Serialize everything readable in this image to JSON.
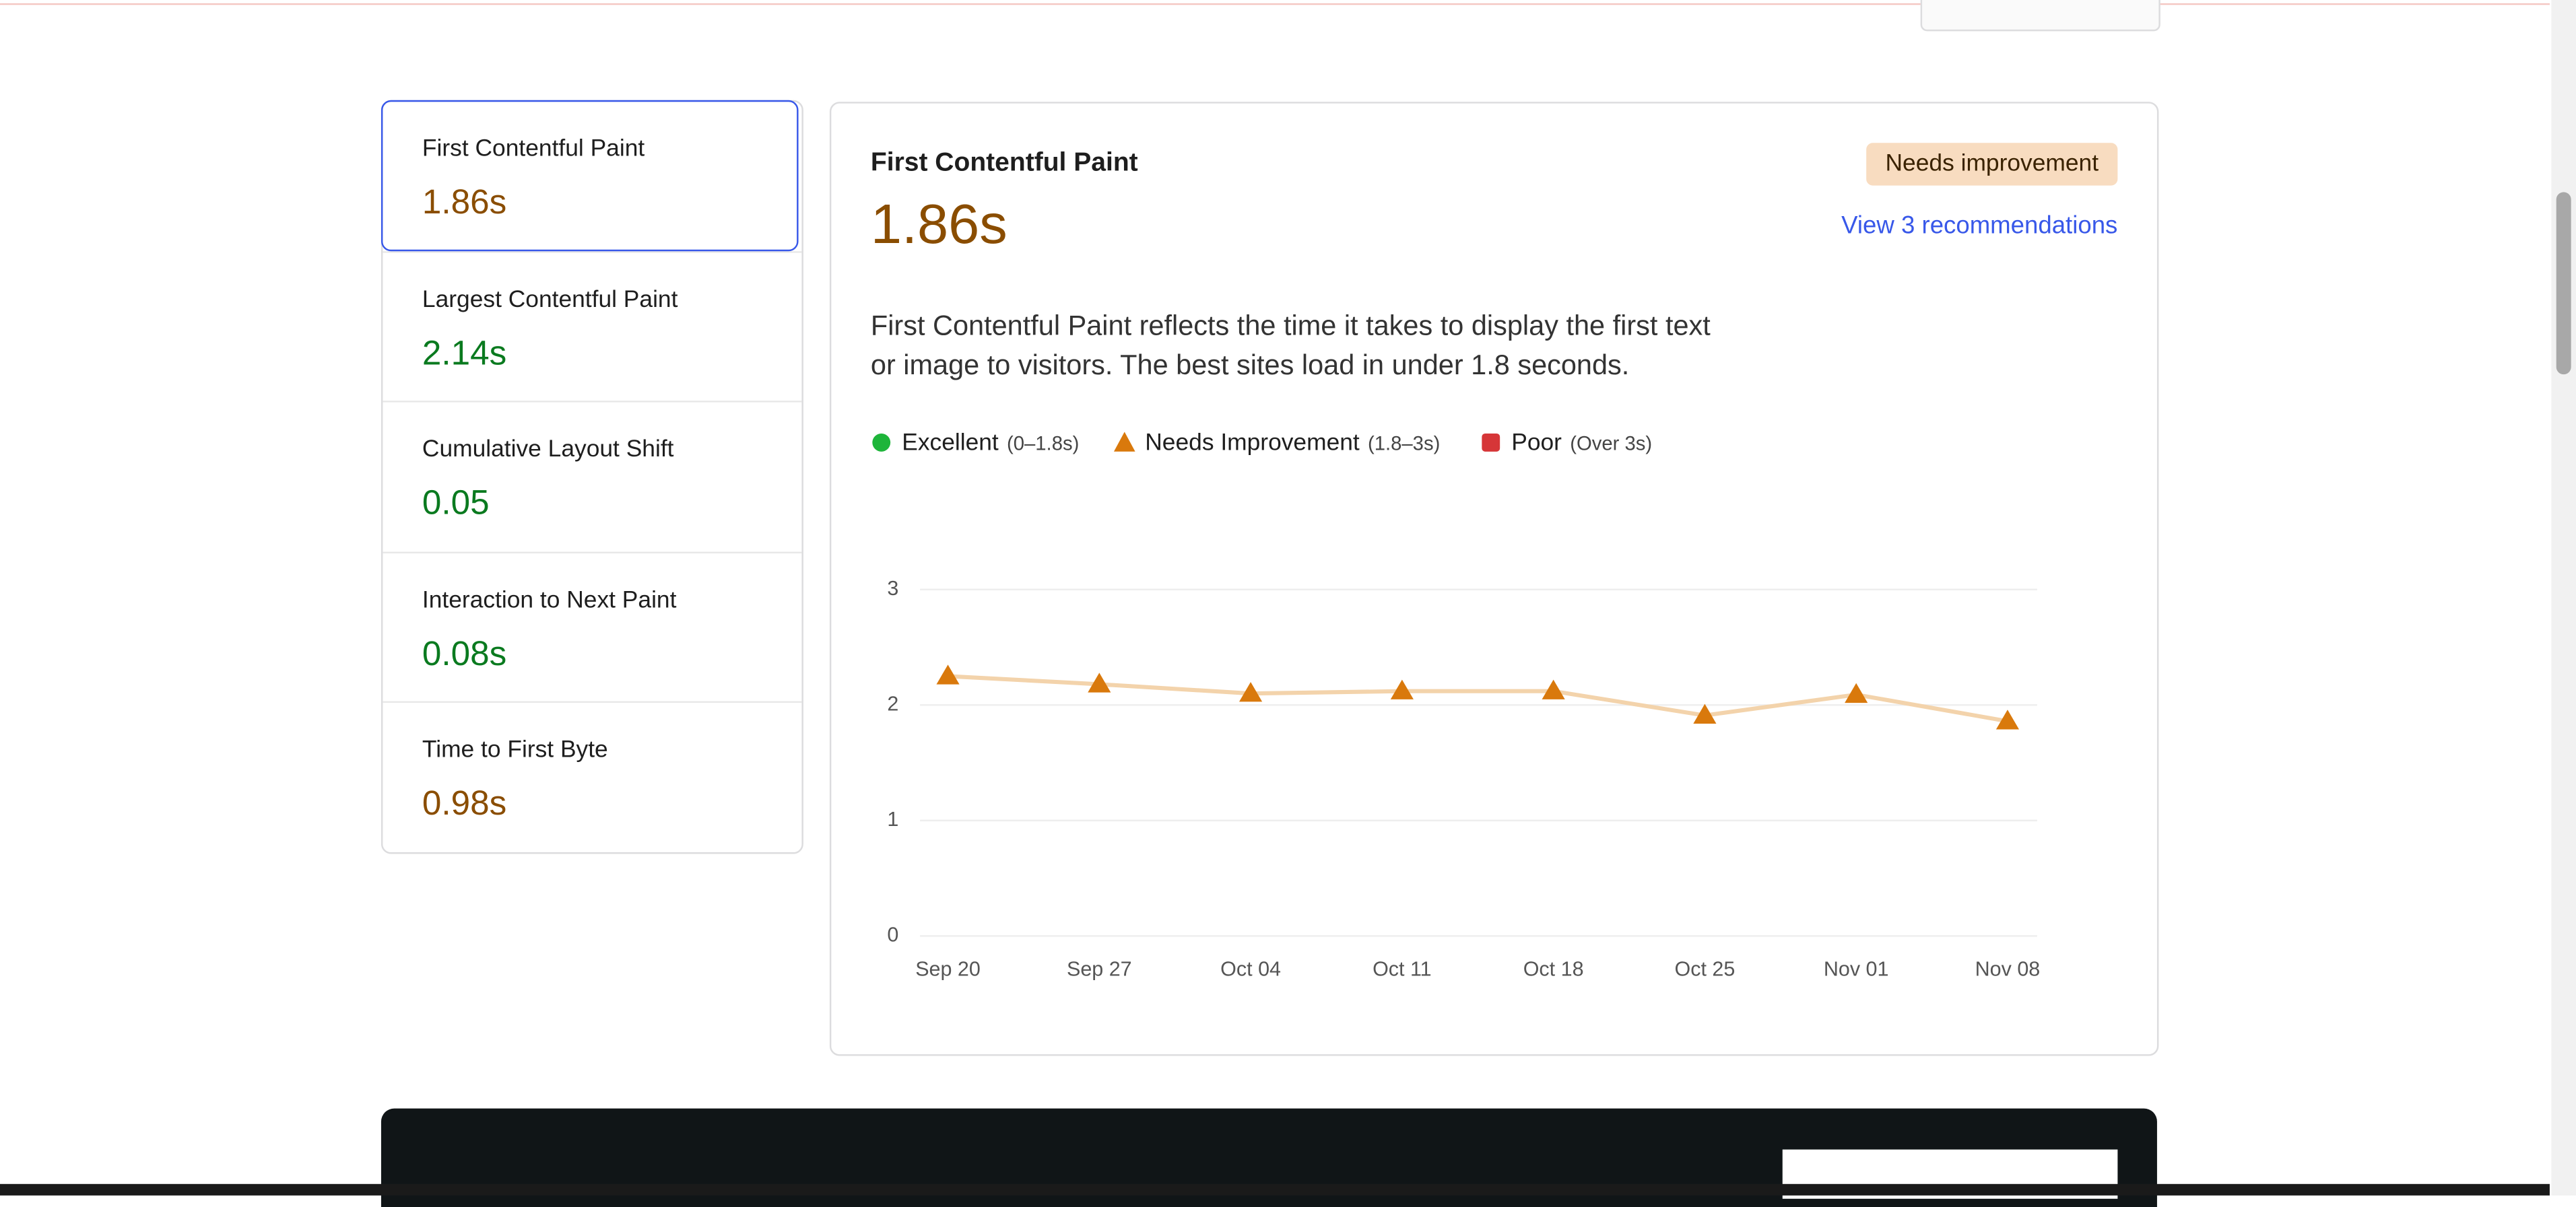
{
  "metrics": [
    {
      "name": "First Contentful Paint",
      "value": "1.86s"
    },
    {
      "name": "Largest Contentful Paint",
      "value": "2.14s"
    },
    {
      "name": "Cumulative Layout Shift",
      "value": "0.05"
    },
    {
      "name": "Interaction to Next Paint",
      "value": "0.08s"
    },
    {
      "name": "Time to First Byte",
      "value": "0.98s"
    }
  ],
  "detail": {
    "title": "First Contentful Paint",
    "value": "1.86s",
    "badge": "Needs improvement",
    "link": "View 3 recommendations",
    "description": [
      "First Contentful Paint reflects the time it takes to display the first text",
      "or image to visitors. The best sites load in under 1.8 seconds."
    ],
    "legend": [
      {
        "name": "Excellent",
        "range": "(0–1.8s)"
      },
      {
        "name": "Needs Improvement",
        "range": "(1.8–3s)"
      },
      {
        "name": "Poor",
        "range": "(Over 3s)"
      }
    ]
  },
  "chart_data": {
    "type": "line",
    "categories": [
      "Sep 20",
      "Sep 27",
      "Oct 04",
      "Oct 11",
      "Oct 18",
      "Oct 25",
      "Nov 01",
      "Nov 08"
    ],
    "values": [
      2.25,
      2.18,
      2.1,
      2.12,
      2.12,
      1.91,
      2.09,
      1.86
    ],
    "color": "#f3d3ab",
    "marker_color": "#d9790c",
    "ylim": [
      0,
      3
    ],
    "yticks": [
      0,
      1,
      2,
      3
    ],
    "grid": true
  }
}
